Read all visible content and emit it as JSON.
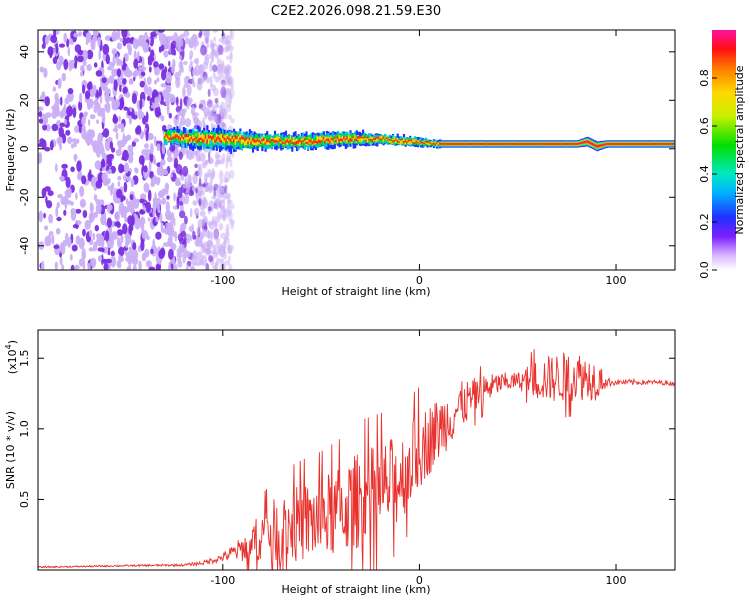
{
  "chart_data": [
    {
      "type": "heatmap",
      "title": "C2E2.2026.098.21.59.E30",
      "xlabel": "Height of straight line (km)",
      "ylabel": "Frequency (Hz)",
      "xlim": [
        -194,
        130
      ],
      "ylim": [
        -50,
        49
      ],
      "x_ticks": [
        -100,
        0,
        100
      ],
      "x_tick_labels": [
        "-100",
        "0",
        "100"
      ],
      "y_ticks": [
        -40,
        -20,
        0,
        20,
        40
      ],
      "y_tick_labels": [
        "-40",
        "-20",
        "0",
        "20",
        "40"
      ],
      "noise_region_x": [
        -194,
        -95
      ],
      "signal_band": {
        "x": [
          -130,
          -110,
          -100,
          -80,
          -60,
          -40,
          -20,
          -5,
          10,
          50,
          80,
          85,
          90,
          95,
          130
        ],
        "center_hz": [
          5,
          4,
          4,
          3,
          3,
          4,
          4,
          3,
          2,
          2,
          2,
          3,
          1,
          2,
          2
        ],
        "half_width_hz": [
          3,
          4,
          4,
          3,
          3,
          3,
          2,
          2,
          1.5,
          1.5,
          1.5,
          2,
          2,
          1.5,
          1.5
        ]
      },
      "colorbar": {
        "label": "Normalized spectral amplitude",
        "range": [
          0,
          1
        ],
        "ticks": [
          0.0,
          0.2,
          0.4,
          0.6,
          0.8
        ],
        "tick_labels": [
          "0.0",
          "0.2",
          "0.4",
          "0.6",
          "0.8"
        ]
      }
    },
    {
      "type": "line",
      "xlabel": "Height of straight line (km)",
      "ylabel": "SNR (10 * v/v)",
      "y_multiplier": "(x10",
      "y_multiplier_exp": "4",
      "y_multiplier_close": ")",
      "xlim": [
        -194,
        130
      ],
      "ylim": [
        0,
        17000
      ],
      "x_ticks": [
        -100,
        0,
        100
      ],
      "x_tick_labels": [
        "-100",
        "0",
        "100"
      ],
      "y_ticks": [
        5000,
        10000,
        15000
      ],
      "y_tick_labels": [
        "0.5",
        "1.0",
        "1.5"
      ],
      "series": [
        {
          "name": "SNR",
          "color": "#e8302c",
          "x": [
            -194,
            -150,
            -120,
            -110,
            -100,
            -90,
            -80,
            -70,
            -60,
            -50,
            -40,
            -30,
            -20,
            -10,
            0,
            10,
            20,
            30,
            40,
            50,
            60,
            70,
            80,
            90,
            95,
            100,
            110,
            120,
            130
          ],
          "y": [
            200,
            300,
            350,
            500,
            900,
            1500,
            2500,
            3000,
            3300,
            3600,
            4200,
            5000,
            5500,
            6500,
            8500,
            10000,
            11500,
            12500,
            13200,
            13400,
            13500,
            13600,
            13800,
            13500,
            13300,
            13300,
            13300,
            13300,
            13200
          ],
          "noise_amplitude": [
            50,
            60,
            80,
            150,
            300,
            900,
            1800,
            2500,
            2800,
            3000,
            3200,
            3500,
            3500,
            3200,
            2800,
            2300,
            1800,
            1200,
            800,
            600,
            1500,
            1800,
            1800,
            1500,
            400,
            200,
            200,
            150,
            150
          ]
        }
      ]
    }
  ],
  "colors": {
    "snr_line": "#e8302c",
    "noise_dots": "#7a2ee0"
  }
}
